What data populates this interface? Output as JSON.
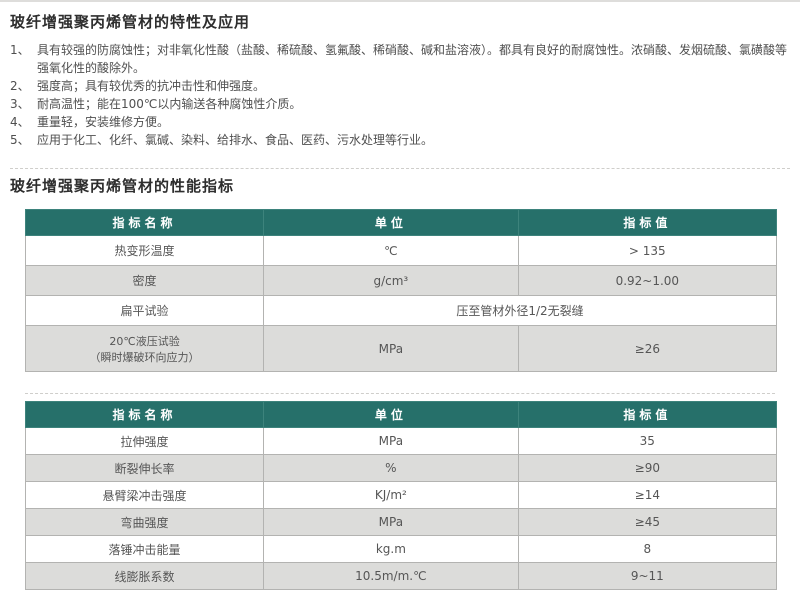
{
  "colors": {
    "header_bg": "#26706a",
    "header_text": "#ffffff",
    "row_alt_bg": "#dcdcda",
    "body_text": "#4f4f4f"
  },
  "doc": {
    "title": "玻纤增强聚丙烯管材的特性及应用",
    "subtitle": "玻纤增强聚丙烯管材的性能指标",
    "features": [
      {
        "num": "1、",
        "text": "具有较强的防腐蚀性；对非氧化性酸（盐酸、稀硫酸、氢氟酸、稀硝酸、碱和盐溶液）。都具有良好的耐腐蚀性。浓硝酸、发烟硫酸、氯磺酸等强氧化性的酸除外。"
      },
      {
        "num": "2、",
        "text": "强度高；具有较优秀的抗冲击性和伸强度。"
      },
      {
        "num": "3、",
        "text": "耐高温性；能在100℃以内输送各种腐蚀性介质。"
      },
      {
        "num": "4、",
        "text": "重量轻，安装维修方便。"
      },
      {
        "num": "5、",
        "text": "应用于化工、化纤、氯碱、染料、给排水、食品、医药、污水处理等行业。"
      }
    ]
  },
  "table1": {
    "headers": [
      "指标名称",
      "单位",
      "指标值"
    ],
    "rows": [
      {
        "name": "热变形温度",
        "unit": "℃",
        "value": "> 135"
      },
      {
        "name": "密度",
        "unit": "g/cm³",
        "value": "0.92~1.00"
      },
      {
        "name": "扁平试验",
        "merged": "压至管材外径1/2无裂缝"
      },
      {
        "name": "20℃液压试验",
        "name_sub": "（瞬时爆破环向应力）",
        "unit": "MPa",
        "value": "≥26"
      }
    ]
  },
  "table2": {
    "headers": [
      "指标名称",
      "单位",
      "指标值"
    ],
    "rows": [
      {
        "name": "拉伸强度",
        "unit": "MPa",
        "value": "35"
      },
      {
        "name": "断裂伸长率",
        "unit": "%",
        "value": "≥90"
      },
      {
        "name": "悬臂梁冲击强度",
        "unit": "KJ/m²",
        "value": "≥14"
      },
      {
        "name": "弯曲强度",
        "unit": "MPa",
        "value": "≥45"
      },
      {
        "name": "落锤冲击能量",
        "unit": "kg.m",
        "value": "8"
      },
      {
        "name": "线膨胀系数",
        "unit": "10.5m/m.℃",
        "value": "9~11"
      }
    ]
  }
}
